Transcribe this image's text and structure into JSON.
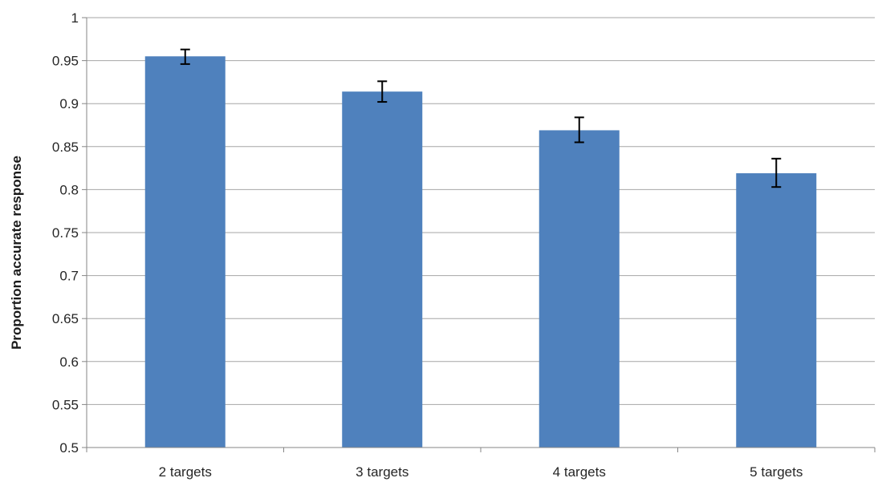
{
  "chart_data": {
    "type": "bar",
    "title": "",
    "xlabel": "",
    "ylabel": "Proportion accurate response",
    "categories": [
      "2 targets",
      "3 targets",
      "4 targets",
      "5 targets"
    ],
    "values": [
      0.955,
      0.914,
      0.869,
      0.819
    ],
    "error_low": [
      0.946,
      0.902,
      0.855,
      0.803
    ],
    "error_high": [
      0.963,
      0.926,
      0.884,
      0.836
    ],
    "ylim": [
      0.5,
      1.0
    ],
    "yticks": [
      0.5,
      0.55,
      0.6,
      0.65,
      0.7,
      0.75,
      0.8,
      0.85,
      0.9,
      0.95,
      1.0
    ],
    "ytick_labels": [
      "0.5",
      "0.55",
      "0.6",
      "0.65",
      "0.7",
      "0.75",
      "0.8",
      "0.85",
      "0.9",
      "0.95",
      "1"
    ],
    "grid": true,
    "legend": "none",
    "bar_color": "#4F81BD",
    "grid_color": "#A6A6A6",
    "error_color": "#000000"
  }
}
